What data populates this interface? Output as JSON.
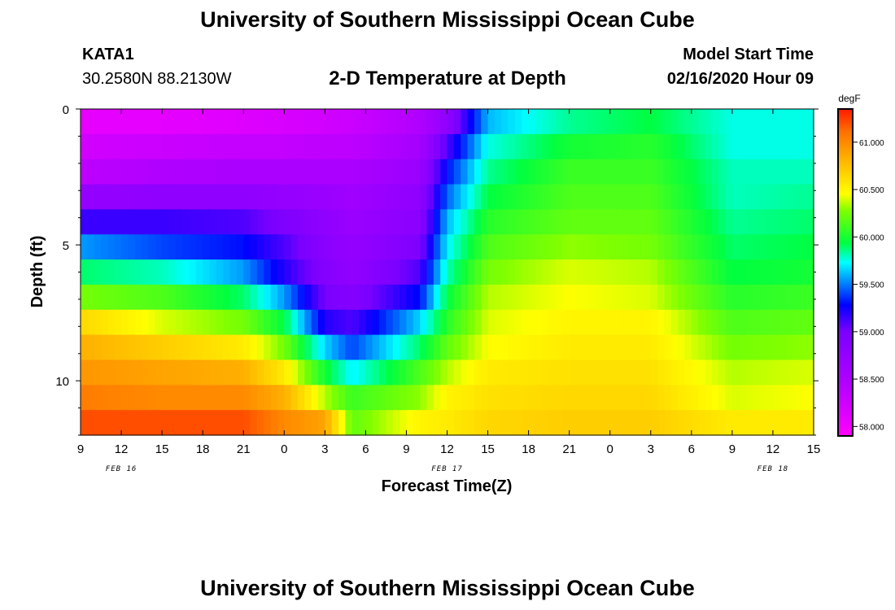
{
  "header": {
    "title": "University of Southern Mississippi Ocean Cube",
    "station": "KATA1",
    "coords": "30.2580N 88.2130W",
    "subtitle": "2-D Temperature at Depth",
    "start_label": "Model Start Time",
    "start_value": "02/16/2020 Hour 09"
  },
  "footer": {
    "title": "University of Southern Mississippi Ocean Cube"
  },
  "chart_data": {
    "type": "heatmap",
    "xlabel": "Forecast Time(Z)",
    "ylabel": "Depth (ft)",
    "x_ticks": [
      "9",
      "12",
      "15",
      "18",
      "21",
      "0",
      "3",
      "6",
      "9",
      "12",
      "15",
      "18",
      "21",
      "0",
      "3",
      "6",
      "9",
      "12",
      "15"
    ],
    "y_ticks": [
      "0",
      "5",
      "10"
    ],
    "date_labels": [
      "FEB 16",
      "FEB 17",
      "FEB 18"
    ],
    "colorbar": {
      "unit": "degF",
      "ticks": [
        "61.000",
        "60.500",
        "60.000",
        "59.500",
        "59.000",
        "58.500",
        "58.000"
      ],
      "range": [
        57.9,
        61.35
      ]
    },
    "x_range_hours": [
      0,
      54
    ],
    "depth_range_ft": [
      0,
      12
    ],
    "profiles": [
      {
        "hour": 0,
        "temps": [
          58.1,
          58.25,
          58.4,
          58.75,
          59.15,
          59.55,
          59.9,
          60.25,
          60.65,
          60.85,
          60.95,
          61.05,
          61.2
        ]
      },
      {
        "hour": 6,
        "temps": [
          58.1,
          58.3,
          58.5,
          58.8,
          59.15,
          59.4,
          59.8,
          60.15,
          60.4,
          60.7,
          60.9,
          61.0,
          61.2
        ]
      },
      {
        "hour": 12,
        "temps": [
          58.15,
          58.35,
          58.55,
          58.8,
          59.1,
          59.3,
          59.55,
          59.9,
          60.25,
          60.55,
          60.85,
          61.0,
          61.2
        ]
      },
      {
        "hour": 15,
        "temps": [
          58.2,
          58.35,
          58.55,
          58.75,
          58.95,
          59.1,
          59.2,
          59.55,
          59.95,
          60.25,
          60.55,
          60.85,
          61.0
        ]
      },
      {
        "hour": 18,
        "temps": [
          58.25,
          58.4,
          58.55,
          58.7,
          58.8,
          58.85,
          58.9,
          59.0,
          59.2,
          59.65,
          60.0,
          60.35,
          60.9
        ]
      },
      {
        "hour": 20,
        "temps": [
          58.3,
          58.4,
          58.55,
          58.65,
          58.7,
          58.75,
          58.78,
          58.9,
          59.1,
          59.4,
          59.7,
          60.1,
          60.2
        ]
      },
      {
        "hour": 25,
        "temps": [
          58.5,
          58.6,
          58.7,
          58.8,
          58.85,
          58.95,
          59.1,
          59.3,
          59.65,
          59.9,
          60.15,
          60.3,
          60.5
        ]
      },
      {
        "hour": 27,
        "temps": [
          58.8,
          59.1,
          59.3,
          59.45,
          59.6,
          59.7,
          59.8,
          59.95,
          60.05,
          60.2,
          60.35,
          60.5,
          60.55
        ]
      },
      {
        "hour": 30,
        "temps": [
          59.6,
          59.75,
          59.85,
          59.95,
          60.05,
          60.15,
          60.25,
          60.35,
          60.4,
          60.45,
          60.55,
          60.6,
          60.65
        ]
      },
      {
        "hour": 36,
        "temps": [
          59.85,
          60.0,
          60.1,
          60.15,
          60.2,
          60.3,
          60.4,
          60.45,
          60.5,
          60.55,
          60.6,
          60.65,
          60.7
        ]
      },
      {
        "hour": 42,
        "temps": [
          59.95,
          60.05,
          60.1,
          60.15,
          60.2,
          60.25,
          60.35,
          60.4,
          60.5,
          60.55,
          60.6,
          60.65,
          60.7
        ]
      },
      {
        "hour": 48,
        "temps": [
          59.75,
          59.75,
          59.8,
          59.8,
          59.85,
          59.9,
          59.95,
          60.05,
          60.15,
          60.25,
          60.35,
          60.4,
          60.55
        ]
      },
      {
        "hour": 54,
        "temps": [
          59.75,
          59.75,
          59.8,
          59.85,
          59.9,
          59.95,
          60.0,
          60.1,
          60.2,
          60.3,
          60.4,
          60.45,
          60.55
        ]
      }
    ]
  }
}
